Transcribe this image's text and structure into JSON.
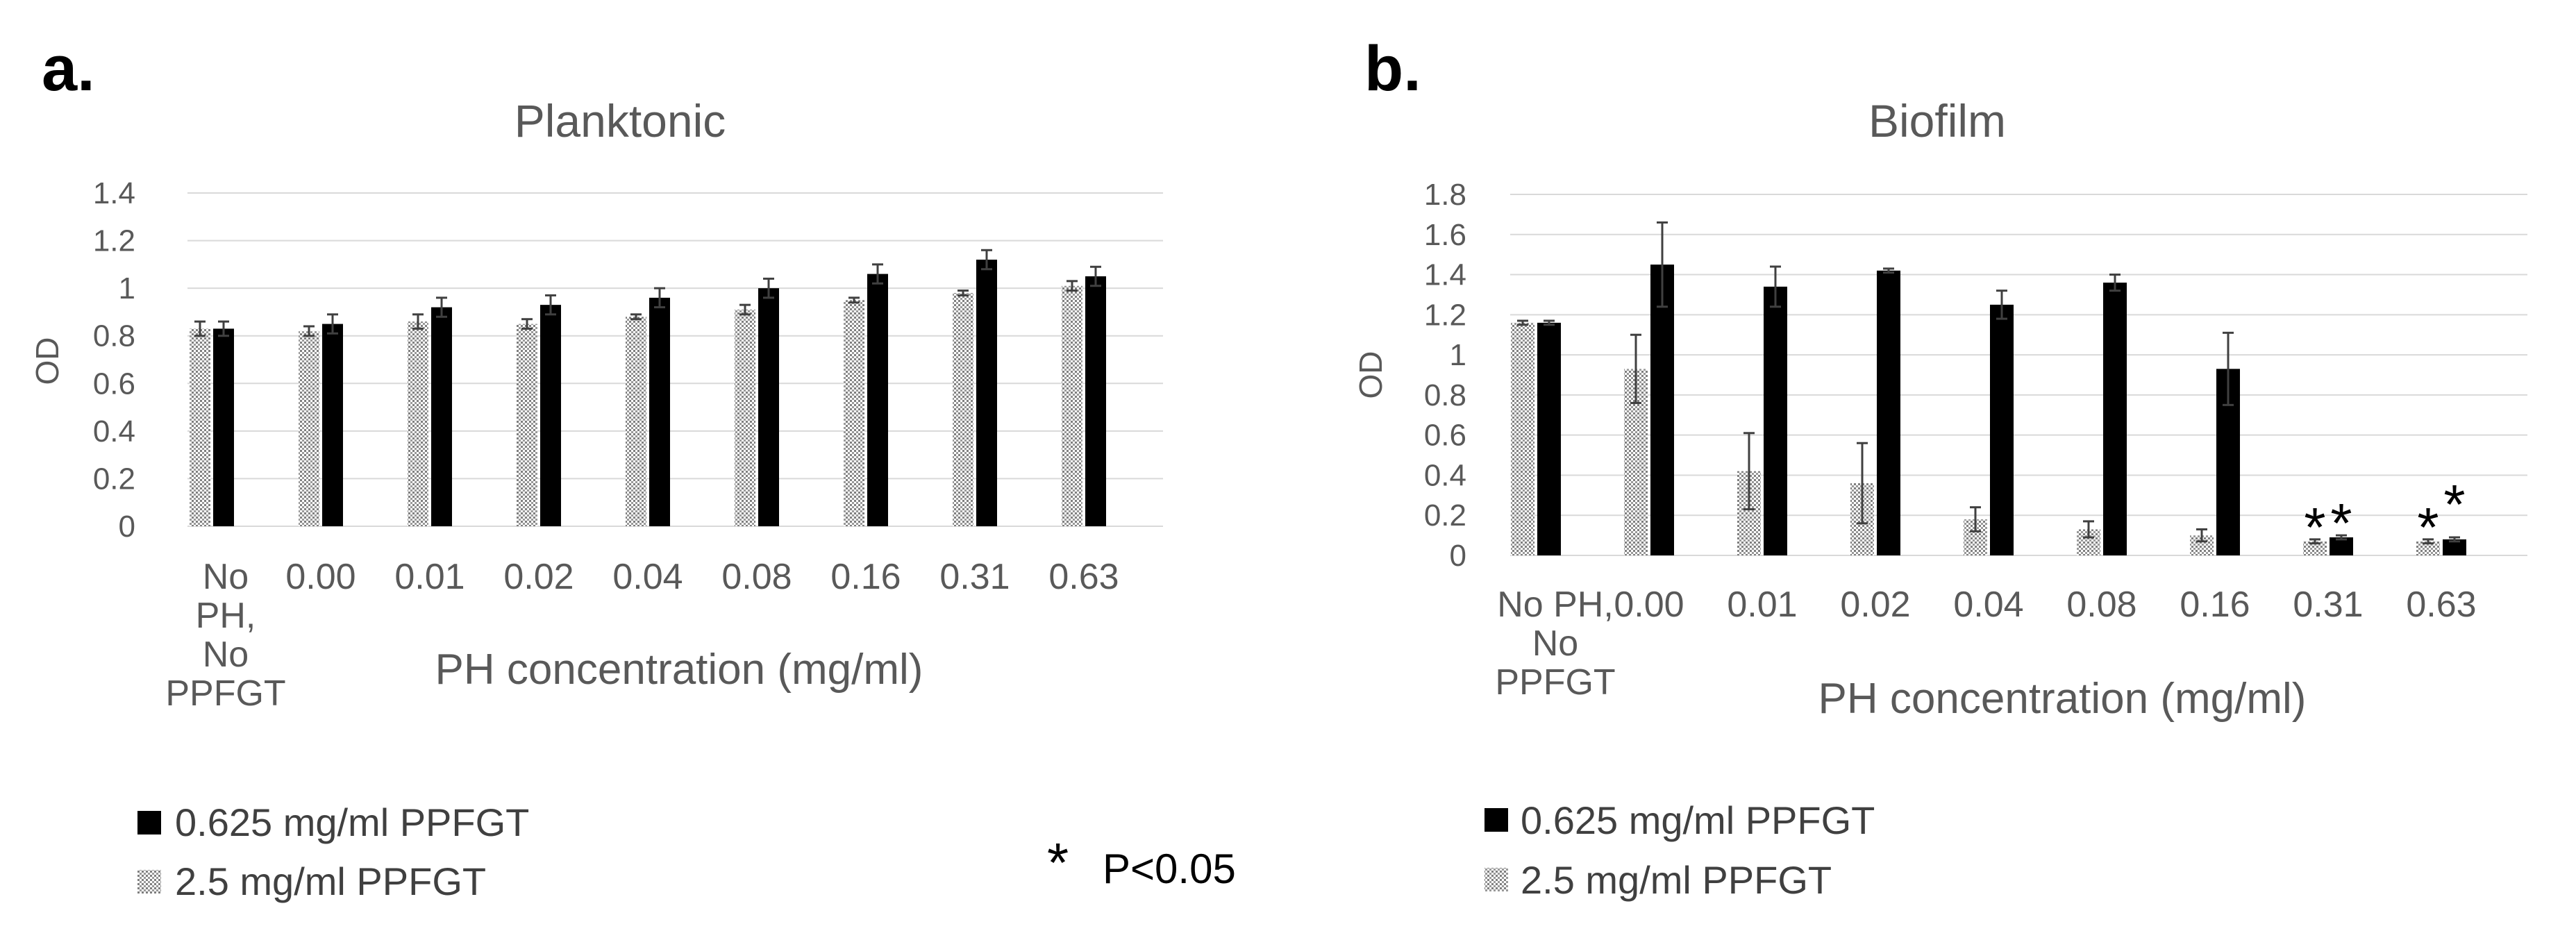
{
  "significance_note": {
    "symbol": "*",
    "label": "P<0.05"
  },
  "legend": {
    "dark_label": "0.625 mg/ml PPFGT",
    "light_label": "2.5 mg/ml PPFGT"
  },
  "colors": {
    "dark_bar": "#000000",
    "light_bar": "#bfbfbf",
    "text": "#595959",
    "grid": "#d9d9d9"
  },
  "chart_data": [
    {
      "type": "bar",
      "panel_label": "a.",
      "title": "Planktonic",
      "xlabel": "PH concentration (mg/ml)",
      "ylabel": "OD",
      "ylim": [
        0,
        1.4
      ],
      "yticks": [
        "0",
        "0.2",
        "0.4",
        "0.6",
        "0.8",
        "1",
        "1.2",
        "1.4"
      ],
      "categories": [
        [
          "No",
          "PH,",
          "No",
          "PPFGT"
        ],
        [
          "0.00"
        ],
        [
          "0.01"
        ],
        [
          "0.02"
        ],
        [
          "0.04"
        ],
        [
          "0.08"
        ],
        [
          "0.16"
        ],
        [
          "0.31"
        ],
        [
          "0.63"
        ]
      ],
      "series": [
        {
          "name": "2.5 mg/ml PPFGT",
          "style": "light",
          "values": [
            0.83,
            0.82,
            0.86,
            0.85,
            0.88,
            0.91,
            0.95,
            0.98,
            1.01
          ],
          "errors": [
            0.03,
            0.02,
            0.03,
            0.02,
            0.01,
            0.02,
            0.01,
            0.01,
            0.02
          ]
        },
        {
          "name": "0.625 mg/ml PPFGT",
          "style": "dark",
          "values": [
            0.83,
            0.85,
            0.92,
            0.93,
            0.96,
            1.0,
            1.06,
            1.12,
            1.05
          ],
          "errors": [
            0.03,
            0.04,
            0.04,
            0.04,
            0.04,
            0.04,
            0.04,
            0.04,
            0.04
          ]
        }
      ],
      "significant": []
    },
    {
      "type": "bar",
      "panel_label": "b.",
      "title": "Biofilm",
      "xlabel": "PH concentration (mg/ml)",
      "ylabel": "OD",
      "ylim": [
        0,
        1.8
      ],
      "yticks": [
        "0",
        "0.2",
        "0.4",
        "0.6",
        "0.8",
        "1",
        "1.2",
        "1.4",
        "1.6",
        "1.8"
      ],
      "categories": [
        [
          "No PH,",
          "No",
          "PPFGT"
        ],
        [
          "0.00"
        ],
        [
          "0.01"
        ],
        [
          "0.02"
        ],
        [
          "0.04"
        ],
        [
          "0.08"
        ],
        [
          "0.16"
        ],
        [
          "0.31"
        ],
        [
          "0.63"
        ]
      ],
      "series": [
        {
          "name": "2.5 mg/ml PPFGT",
          "style": "light",
          "values": [
            1.16,
            0.93,
            0.42,
            0.36,
            0.18,
            0.13,
            0.1,
            0.07,
            0.07
          ],
          "errors": [
            0.01,
            0.17,
            0.19,
            0.2,
            0.06,
            0.04,
            0.03,
            0.01,
            0.01
          ]
        },
        {
          "name": "0.625 mg/ml PPFGT",
          "style": "dark",
          "values": [
            1.16,
            1.45,
            1.34,
            1.42,
            1.25,
            1.36,
            0.93,
            0.09,
            0.08
          ],
          "errors": [
            0.01,
            0.21,
            0.1,
            0.01,
            0.07,
            0.04,
            0.18,
            0.01,
            0.01
          ]
        }
      ],
      "significant": [
        {
          "category": 7,
          "series": [
            0,
            1
          ]
        },
        {
          "category": 8,
          "series": [
            0,
            1
          ]
        }
      ]
    }
  ]
}
